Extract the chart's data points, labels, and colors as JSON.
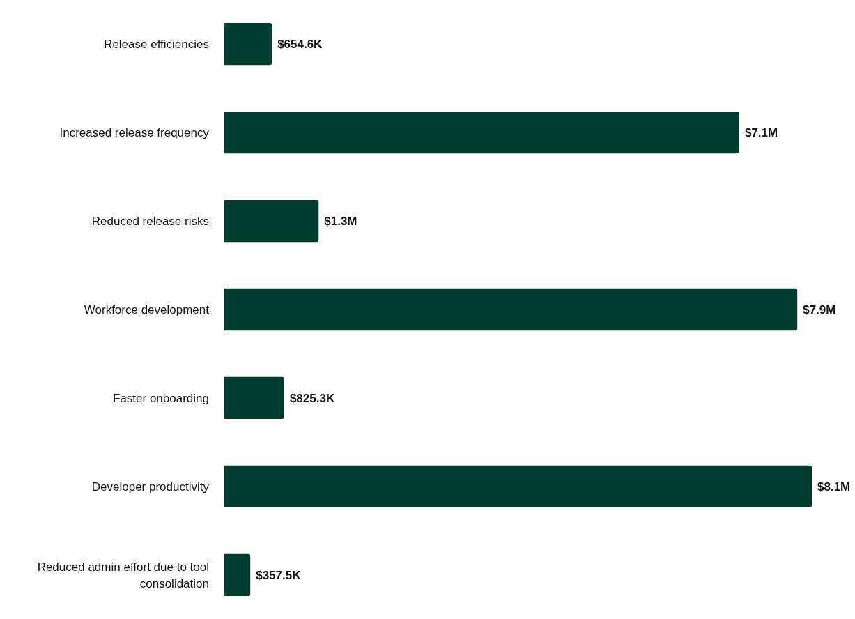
{
  "chart_data": {
    "type": "bar",
    "orientation": "horizontal",
    "categories": [
      "Release efficiencies",
      "Increased release frequency",
      "Reduced release risks",
      "Workforce development",
      "Faster onboarding",
      "Developer productivity",
      "Reduced admin effort due to tool consolidation"
    ],
    "values": [
      654600,
      7100000,
      1300000,
      7900000,
      825300,
      8100000,
      357500
    ],
    "value_labels": [
      "$654.6K",
      "$7.1M",
      "$1.3M",
      "$7.9M",
      "$825.3K",
      "$8.1M",
      "$357.5K"
    ],
    "color": "#003d2e"
  }
}
